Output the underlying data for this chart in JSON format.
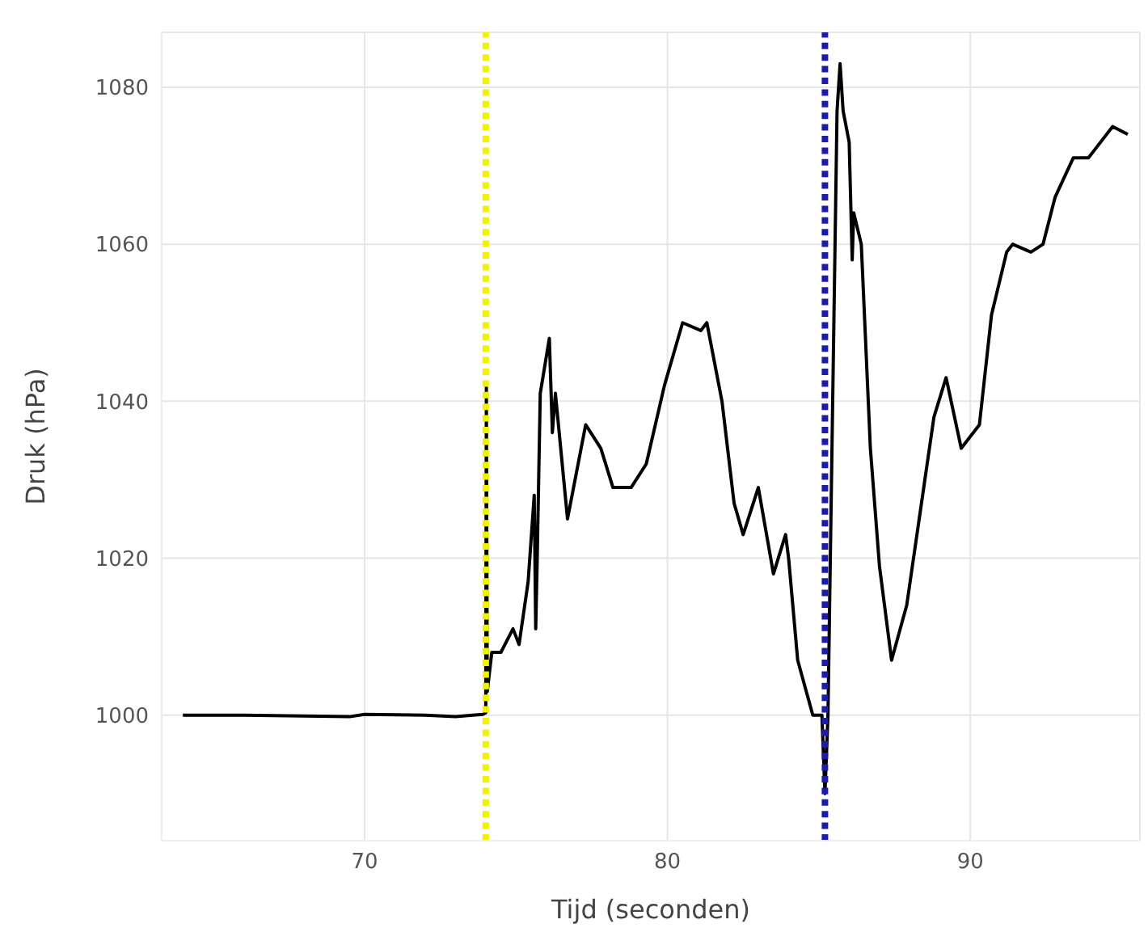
{
  "chart_data": {
    "type": "line",
    "xlabel": "Tijd (seconden)",
    "ylabel": "Druk (hPa)",
    "x": [
      64.0,
      66.0,
      68.0,
      69.5,
      70.0,
      72.0,
      73.0,
      73.9,
      74.0,
      74.02,
      74.05,
      74.2,
      74.5,
      74.9,
      75.1,
      75.4,
      75.6,
      75.65,
      75.7,
      75.8,
      76.1,
      76.2,
      76.3,
      76.7,
      77.3,
      77.8,
      78.2,
      78.8,
      79.3,
      79.9,
      80.5,
      81.1,
      81.3,
      81.8,
      82.2,
      82.5,
      83.0,
      83.5,
      83.9,
      84.0,
      84.3,
      84.8,
      85.1,
      85.2,
      85.3,
      85.6,
      85.7,
      85.8,
      86.0,
      86.1,
      86.15,
      86.4,
      86.7,
      87.0,
      87.4,
      87.9,
      88.5,
      88.8,
      89.2,
      89.7,
      90.3,
      90.7,
      91.2,
      91.4,
      92.0,
      92.4,
      92.8,
      93.4,
      93.9,
      94.1,
      94.7,
      95.2
    ],
    "series": [
      {
        "color": "#000000",
        "values": [
          1000,
          1000,
          999.9,
          999.8,
          1000.1,
          1000,
          999.8,
          1000.1,
          1000.3,
          1042,
          1003,
          1008,
          1008,
          1011,
          1009,
          1017,
          1028,
          1011,
          1020,
          1041,
          1048,
          1036,
          1041,
          1025,
          1037,
          1034,
          1029,
          1029,
          1032,
          1042,
          1050,
          1049,
          1050,
          1040,
          1027,
          1023,
          1029,
          1018,
          1023,
          1020,
          1007,
          1000,
          1000,
          990,
          1000,
          1077,
          1083,
          1077,
          1073,
          1058,
          1064,
          1060,
          1034,
          1019,
          1007,
          1014,
          1030,
          1038,
          1043,
          1034,
          1037,
          1051,
          1059,
          1060,
          1059,
          1060,
          1066,
          1071,
          1071,
          1072,
          1075,
          1074
        ]
      }
    ],
    "xlim": [
      63.3,
      95.6
    ],
    "xticks": [
      70,
      80,
      90
    ],
    "ylim": [
      984,
      1087
    ],
    "yticks": [
      1000,
      1020,
      1040,
      1060,
      1080
    ],
    "grid": true,
    "marker": "none",
    "line_style": "solid",
    "ref_lines": [
      {
        "axis": "x",
        "value": 74.0,
        "color": "#f2f200",
        "line_style": "dotted"
      },
      {
        "axis": "x",
        "value": 85.2,
        "color": "#1c1ca8",
        "line_style": "dotted"
      }
    ]
  }
}
